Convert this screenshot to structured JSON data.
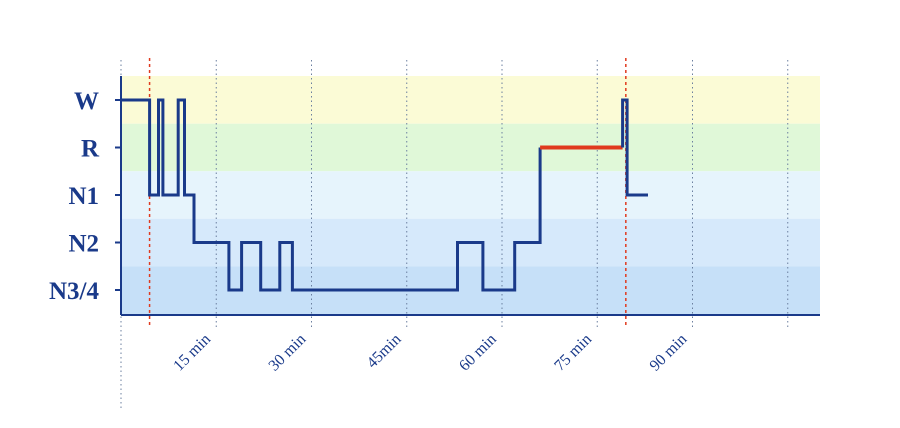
{
  "chart_data": {
    "type": "line",
    "title": "",
    "xlabel": "",
    "ylabel": "",
    "x_unit": "min",
    "x_ticks": [
      {
        "value": 15,
        "label": "15 min"
      },
      {
        "value": 30,
        "label": "30 min"
      },
      {
        "value": 45,
        "label": "45min"
      },
      {
        "value": 60,
        "label": "60 min"
      },
      {
        "value": 75,
        "label": "75 min"
      },
      {
        "value": 90,
        "label": "90 min"
      }
    ],
    "xlim": [
      0,
      110
    ],
    "categories": [
      "W",
      "R",
      "N1",
      "N2",
      "N3/4"
    ],
    "band_colors": [
      "#fbfbd6",
      "#e0f8d8",
      "#e6f4fc",
      "#d6e9fb",
      "#c6e0f8"
    ],
    "line_color": "#1a3a8a",
    "highlight_color": "#e03a1e",
    "marker_color": "#e03a1e",
    "markers_x": [
      4.5,
      79.5
    ],
    "grid": true,
    "series": [
      {
        "points": [
          [
            0,
            "W"
          ],
          [
            4.5,
            "W"
          ],
          [
            4.5,
            "N1"
          ],
          [
            5.9,
            "N1"
          ],
          [
            5.9,
            "W"
          ],
          [
            6.6,
            "W"
          ],
          [
            6.6,
            "N1"
          ],
          [
            9,
            "N1"
          ],
          [
            9,
            "W"
          ],
          [
            10,
            "W"
          ],
          [
            10,
            "N1"
          ],
          [
            11.5,
            "N1"
          ],
          [
            11.5,
            "N2"
          ],
          [
            17,
            "N2"
          ],
          [
            17,
            "N3/4"
          ],
          [
            19,
            "N3/4"
          ],
          [
            19,
            "N2"
          ],
          [
            22,
            "N2"
          ],
          [
            22,
            "N3/4"
          ],
          [
            25,
            "N3/4"
          ],
          [
            25,
            "N2"
          ],
          [
            27,
            "N2"
          ],
          [
            27,
            "N3/4"
          ],
          [
            53,
            "N3/4"
          ],
          [
            53,
            "N2"
          ],
          [
            57,
            "N2"
          ],
          [
            57,
            "N3/4"
          ],
          [
            62,
            "N3/4"
          ],
          [
            62,
            "N2"
          ],
          [
            66,
            "N2"
          ],
          [
            66,
            "R"
          ]
        ]
      },
      {
        "highlight": true,
        "points": [
          [
            66,
            "R"
          ],
          [
            79,
            "R"
          ]
        ]
      },
      {
        "points": [
          [
            79,
            "R"
          ],
          [
            79,
            "W"
          ],
          [
            79.7,
            "W"
          ],
          [
            79.7,
            "N1"
          ],
          [
            83,
            "N1"
          ]
        ]
      }
    ]
  }
}
